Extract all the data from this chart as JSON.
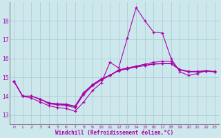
{
  "bg_color": "#cce8ed",
  "grid_color": "#aac8d0",
  "line_color": "#aa00aa",
  "xlabel": "Windchill (Refroidissement éolien,°C)",
  "ylabel_ticks": [
    13,
    14,
    15,
    16,
    17,
    18
  ],
  "xlim": [
    -0.5,
    23.5
  ],
  "ylim": [
    12.5,
    19.0
  ],
  "xticks": [
    0,
    1,
    2,
    3,
    4,
    5,
    6,
    7,
    8,
    9,
    10,
    11,
    12,
    13,
    14,
    15,
    16,
    17,
    18,
    19,
    20,
    21,
    22,
    23
  ],
  "series": [
    [
      14.8,
      14.0,
      13.9,
      13.7,
      13.5,
      13.4,
      13.35,
      13.2,
      13.7,
      14.3,
      14.7,
      15.8,
      15.5,
      17.1,
      18.7,
      18.0,
      17.4,
      17.35,
      16.0,
      15.3,
      15.1,
      15.2,
      15.35,
      15.3
    ],
    [
      14.8,
      14.0,
      14.0,
      13.85,
      13.6,
      13.55,
      13.5,
      13.4,
      14.1,
      14.55,
      14.85,
      15.1,
      15.4,
      15.5,
      15.6,
      15.7,
      15.8,
      15.85,
      15.85,
      15.4,
      15.3,
      15.3,
      15.35,
      15.3
    ],
    [
      14.8,
      14.0,
      14.0,
      13.85,
      13.62,
      13.58,
      13.55,
      13.45,
      14.15,
      14.6,
      14.9,
      15.1,
      15.35,
      15.45,
      15.55,
      15.62,
      15.7,
      15.72,
      15.72,
      15.4,
      15.3,
      15.3,
      15.32,
      15.3
    ],
    [
      14.8,
      14.0,
      14.0,
      13.85,
      13.65,
      13.6,
      13.58,
      13.48,
      14.2,
      14.62,
      14.92,
      15.12,
      15.37,
      15.47,
      15.57,
      15.64,
      15.72,
      15.74,
      15.74,
      15.42,
      15.32,
      15.32,
      15.34,
      15.32
    ]
  ]
}
